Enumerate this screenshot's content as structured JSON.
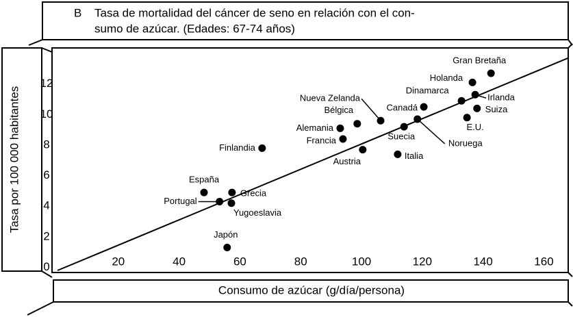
{
  "chart_data": {
    "type": "scatter",
    "panel": "B",
    "title_lines": [
      "Tasa de mortalidad del cáncer de seno en relación con el con-",
      "sumo de azúcar. (Edades: 67-74 años)"
    ],
    "y_label": "Tasa por 100 000 habitantes",
    "x_label": "Consumo de azúcar (g/día/persona)",
    "names": [
      "Gran Bretaña",
      "Holanda",
      "Irlanda",
      "Dinamarca",
      "Suiza",
      "E.U.",
      "Canadá",
      "Nueva Zelanda",
      "Suecia",
      "Noruega",
      "Bélgica",
      "Alemania",
      "Francia",
      "Austria",
      "Italia",
      "Finlandia",
      "España",
      "Grecia",
      "Portugal",
      "Yugoeslavia",
      "Japón"
    ],
    "x": [
      142.6,
      136.5,
      137.4,
      132.9,
      138,
      134.7,
      120.5,
      106.3,
      114,
      118.4,
      98.6,
      93,
      93.9,
      100.4,
      111.9,
      67.3,
      48.2,
      57.4,
      53.3,
      57.2,
      55.8
    ],
    "y": [
      12.7,
      12.1,
      11.3,
      10.9,
      10.4,
      9.8,
      10.5,
      9.6,
      9.2,
      9.7,
      9.4,
      9.1,
      8.4,
      7.7,
      7.4,
      7.8,
      4.9,
      4.9,
      4.3,
      4.2,
      1.3
    ],
    "color": "#000000",
    "trend_line": {
      "x": [
        0,
        168
      ],
      "y": [
        -0.2,
        13.7
      ]
    },
    "xlim": [
      0,
      168
    ],
    "ylim": [
      -0.2,
      14
    ],
    "xticks": [
      20,
      40,
      60,
      80,
      100,
      120,
      140,
      160
    ],
    "yticks": [
      0,
      2,
      4,
      6,
      8,
      10,
      12
    ],
    "grid": false
  }
}
